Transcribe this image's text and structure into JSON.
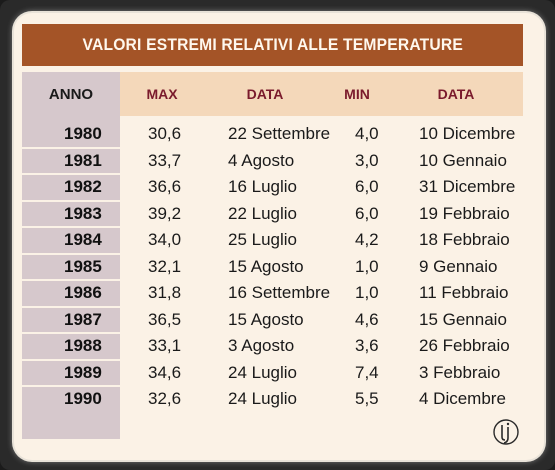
{
  "table": {
    "title": "VALORI  ESTREMI RELATIVI ALLE TEMPERATURE",
    "headers": {
      "anno": "ANNO",
      "max": "MAX",
      "data_max": "DATA",
      "min": "MIN",
      "data_min": "DATA"
    },
    "rows": [
      {
        "anno": "1980",
        "max": "30,6",
        "data_max": "22 Settembre",
        "min": "4,0",
        "data_min": "10 Dicembre"
      },
      {
        "anno": "1981",
        "max": "33,7",
        "data_max": "4 Agosto",
        "min": "3,0",
        "data_min": "10 Gennaio"
      },
      {
        "anno": "1982",
        "max": "36,6",
        "data_max": "16 Luglio",
        "min": "6,0",
        "data_min": "31 Dicembre"
      },
      {
        "anno": "1983",
        "max": "39,2",
        "data_max": "22 Luglio",
        "min": "6,0",
        "data_min": "19 Febbraio"
      },
      {
        "anno": "1984",
        "max": "34,0",
        "data_max": "25 Luglio",
        "min": "4,2",
        "data_min": "18 Febbraio"
      },
      {
        "anno": "1985",
        "max": "32,1",
        "data_max": "15 Agosto",
        "min": "1,0",
        "data_min": "9 Gennaio"
      },
      {
        "anno": "1986",
        "max": "31,8",
        "data_max": "16 Settembre",
        "min": "1,0",
        "data_min": "11 Febbraio"
      },
      {
        "anno": "1987",
        "max": "36,5",
        "data_max": "15 Agosto",
        "min": "4,6",
        "data_min": "15 Gennaio"
      },
      {
        "anno": "1988",
        "max": "33,1",
        "data_max": "3 Agosto",
        "min": "3,6",
        "data_min": "26 Febbraio"
      },
      {
        "anno": "1989",
        "max": "34,6",
        "data_max": "24 Luglio",
        "min": "7,4",
        "data_min": "3 Febbraio"
      },
      {
        "anno": "1990",
        "max": "32,6",
        "data_max": "24 Luglio",
        "min": "5,5",
        "data_min": "4 Dicembre"
      }
    ]
  },
  "colors": {
    "title_bar": "#a45427",
    "header_row": "#f4d8ba",
    "anno_column": "#d6c8cc",
    "accent_header": "#7a1a2c",
    "background": "#fbf2e6"
  },
  "logo": {
    "icon": "circle-letter-logo-icon"
  }
}
